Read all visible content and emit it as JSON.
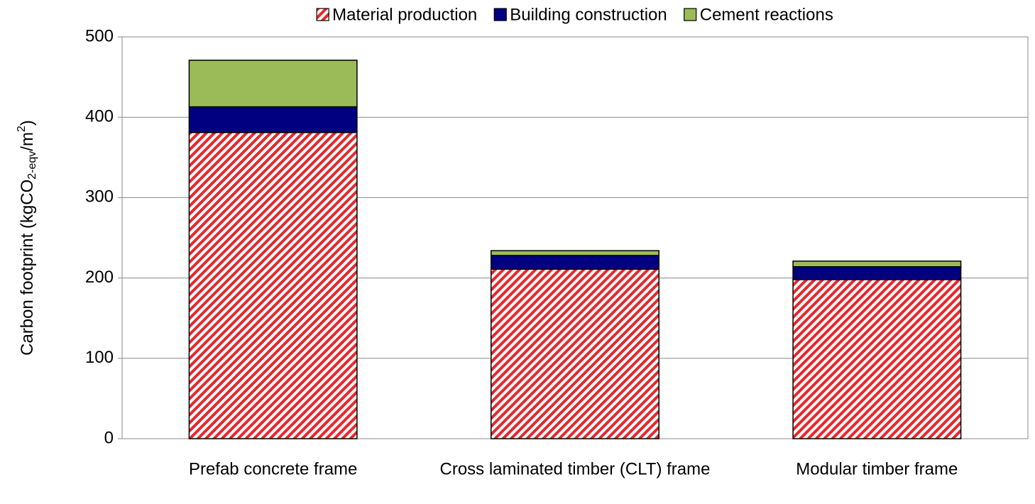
{
  "chart_data": {
    "type": "stacked_bar",
    "y_label": {
      "text": "Carbon footprint  (kgCO",
      "sub": "2-eqv",
      "mid": "/m",
      "sup": "2",
      "end": ")"
    },
    "categories": [
      "Prefab concrete frame",
      "Cross laminated timber (CLT) frame",
      "Modular timber frame"
    ],
    "series": [
      {
        "name": "Material production",
        "color": "#e8262b",
        "pattern": "hatch",
        "values": [
          381,
          211,
          198
        ]
      },
      {
        "name": "Building construction",
        "color": "#000080",
        "values": [
          32,
          17,
          16
        ]
      },
      {
        "name": "Cement reactions",
        "color": "#9bbb59",
        "values": [
          58,
          6,
          7
        ]
      }
    ],
    "ylim": [
      0,
      500
    ],
    "yticks": [
      0,
      100,
      200,
      300,
      400,
      500
    ],
    "grid": true
  }
}
